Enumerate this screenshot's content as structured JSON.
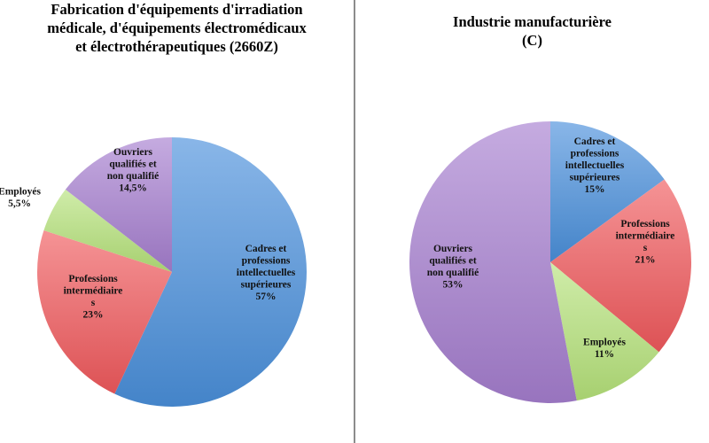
{
  "chart_data": [
    {
      "type": "pie",
      "title": "Fabrication d'équipements d'irradiation\nmédicale, d'équipements électromédicaux\net électrothérapeutiques (2660Z)",
      "slices": [
        {
          "label": "Cadres et professions intellectuelles supérieures",
          "value": 57,
          "value_label": "57%",
          "color": "#4a8fdb"
        },
        {
          "label": "Professions intermédiaires",
          "value": 23,
          "value_label": "23%",
          "color": "#f0595c"
        },
        {
          "label": "Employés",
          "value": 5.5,
          "value_label": "5,5%",
          "color": "#b5e27a"
        },
        {
          "label": "Ouvriers qualifiés et non qualifié",
          "value": 14.5,
          "value_label": "14,5%",
          "color": "#a57ecf"
        }
      ],
      "labels": [
        {
          "lines": [
            "Cadres et",
            "professions",
            "intellectuelles",
            "supérieures",
            "57%"
          ]
        },
        {
          "lines": [
            "Professions",
            "intermédiaire",
            "s",
            "23%"
          ]
        },
        {
          "lines": [
            "Employés",
            "5,5%"
          ]
        },
        {
          "lines": [
            "Ouvriers",
            "qualifiés et",
            "non qualifié",
            "14,5%"
          ]
        }
      ]
    },
    {
      "type": "pie",
      "title": "Industrie manufacturière\n(C)",
      "slices": [
        {
          "label": "Cadres et professions intellectuelles supérieures",
          "value": 15,
          "value_label": "15%",
          "color": "#4a8fdb"
        },
        {
          "label": "Professions intermédiaires",
          "value": 21,
          "value_label": "21%",
          "color": "#f0595c"
        },
        {
          "label": "Employés",
          "value": 11,
          "value_label": "11%",
          "color": "#b5e27a"
        },
        {
          "label": "Ouvriers qualifiés et non qualifié",
          "value": 53,
          "value_label": "53%",
          "color": "#a57ecf"
        }
      ],
      "labels": [
        {
          "lines": [
            "Cadres et",
            "professions",
            "intellectuelles",
            "supérieures",
            "15%"
          ]
        },
        {
          "lines": [
            "Professions",
            "intermédiaire",
            "s",
            "21%"
          ]
        },
        {
          "lines": [
            "Employés",
            "11%"
          ]
        },
        {
          "lines": [
            "Ouvriers",
            "qualifiés et",
            "non qualifié",
            "53%"
          ]
        }
      ]
    }
  ]
}
